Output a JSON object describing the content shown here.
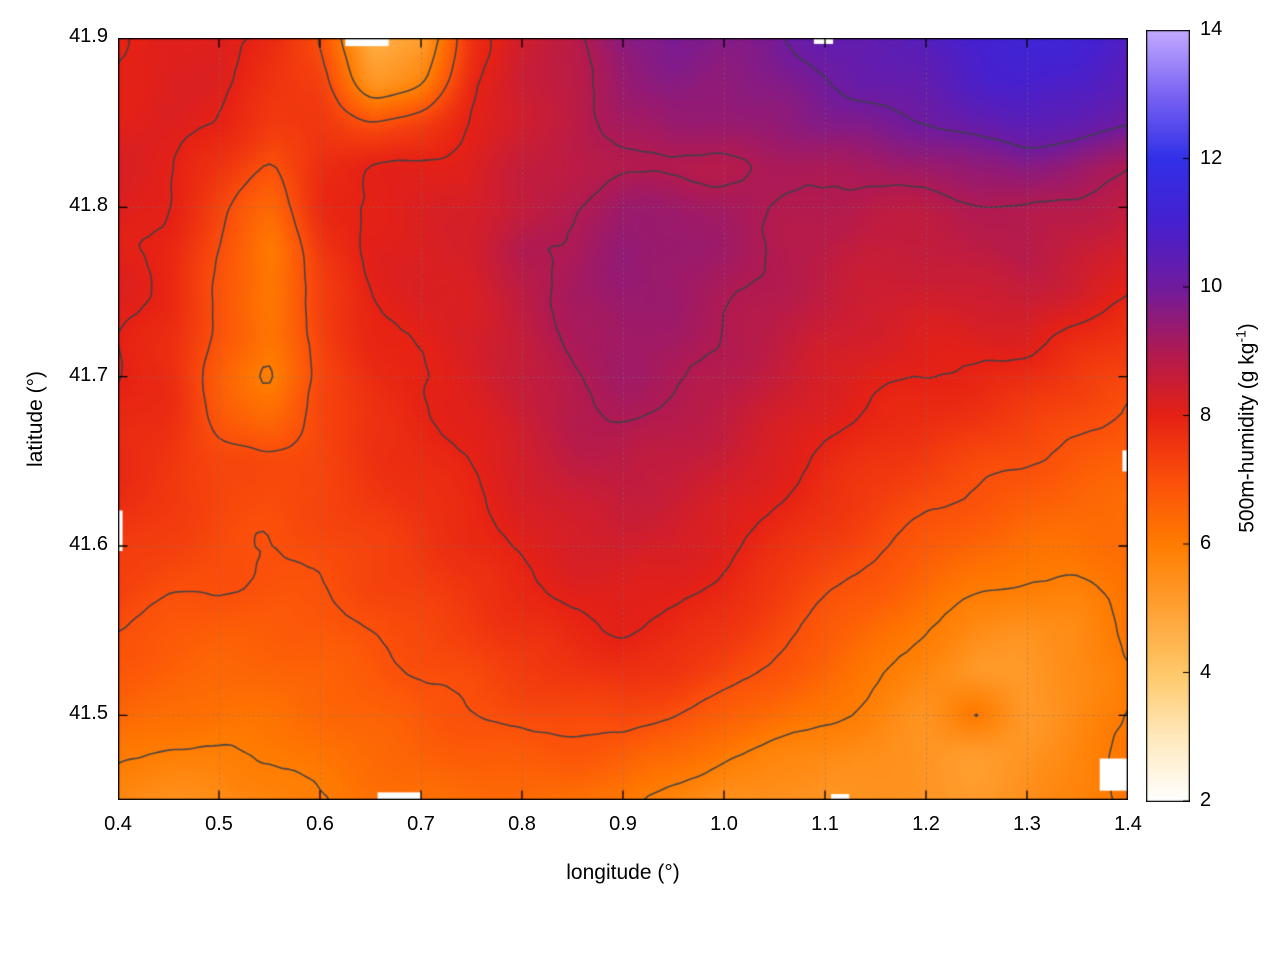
{
  "chart_data": {
    "type": "heatmap",
    "title": "",
    "xlabel": "longitude (°)",
    "ylabel": "latitude (°)",
    "colorbar_label": {
      "prefix": "500m-humidity (g kg",
      "sup": "-1",
      "suffix": ")"
    },
    "xlim": [
      0.4,
      1.4
    ],
    "ylim": [
      41.45,
      41.9
    ],
    "clim": [
      2,
      14
    ],
    "grid_on": true,
    "legend": "colorbar-right",
    "xticks": [
      {
        "v": 0.4,
        "label": "0.4"
      },
      {
        "v": 0.5,
        "label": "0.5"
      },
      {
        "v": 0.6,
        "label": "0.6"
      },
      {
        "v": 0.7,
        "label": "0.7"
      },
      {
        "v": 0.8,
        "label": "0.8"
      },
      {
        "v": 0.9,
        "label": "0.9"
      },
      {
        "v": 1.0,
        "label": "1.0"
      },
      {
        "v": 1.1,
        "label": "1.1"
      },
      {
        "v": 1.2,
        "label": "1.2"
      },
      {
        "v": 1.3,
        "label": "1.3"
      },
      {
        "v": 1.4,
        "label": "1.4"
      }
    ],
    "yticks": [
      {
        "v": 41.5,
        "label": "41.5"
      },
      {
        "v": 41.6,
        "label": "41.6"
      },
      {
        "v": 41.7,
        "label": "41.7"
      },
      {
        "v": 41.8,
        "label": "41.8"
      },
      {
        "v": 41.9,
        "label": "41.9"
      }
    ],
    "cbticks": [
      {
        "v": 2,
        "label": "2"
      },
      {
        "v": 4,
        "label": "4"
      },
      {
        "v": 6,
        "label": "6"
      },
      {
        "v": 8,
        "label": "8"
      },
      {
        "v": 10,
        "label": "10"
      },
      {
        "v": 12,
        "label": "12"
      },
      {
        "v": 14,
        "label": "14"
      }
    ],
    "contour_levels": [
      6,
      7,
      8,
      9,
      10
    ],
    "contour_color": "#3a4048",
    "grid_line_color": "#777777",
    "palette": [
      {
        "v": 2,
        "color": "#ffffff"
      },
      {
        "v": 3,
        "color": "#ffe9bd"
      },
      {
        "v": 4,
        "color": "#ffc869"
      },
      {
        "v": 5,
        "color": "#ffa133"
      },
      {
        "v": 6,
        "color": "#ff7c00"
      },
      {
        "v": 7,
        "color": "#fb4f0a"
      },
      {
        "v": 8,
        "color": "#e62114"
      },
      {
        "v": 9,
        "color": "#b01a52"
      },
      {
        "v": 10,
        "color": "#701b9e"
      },
      {
        "v": 11,
        "color": "#4620cf"
      },
      {
        "v": 12,
        "color": "#3130e8"
      },
      {
        "v": 13,
        "color": "#7a63f2"
      },
      {
        "v": 14,
        "color": "#c3aaff"
      }
    ],
    "grid": {
      "lon_min": 0.4,
      "lon_max": 1.4,
      "lat_max": 41.9,
      "lat_min": 41.45,
      "cols": 21,
      "rows": 19,
      "order": "rows top (41.9) to bottom (41.45)",
      "values": [
        [
          7.9,
          8.1,
          8.2,
          7.8,
          7.0,
          4.6,
          5.0,
          7.8,
          8.4,
          8.8,
          9.6,
          9.8,
          9.7,
          9.9,
          10.3,
          10.4,
          10.6,
          11.0,
          11.3,
          11.2,
          10.8
        ],
        [
          8.05,
          8.2,
          8.1,
          7.7,
          7.3,
          5.2,
          5.8,
          7.9,
          8.5,
          8.8,
          9.4,
          9.6,
          9.5,
          9.7,
          10.0,
          10.2,
          10.4,
          10.8,
          11.0,
          10.9,
          10.5
        ],
        [
          8.1,
          8.2,
          8.0,
          7.4,
          7.6,
          7.0,
          7.4,
          8.0,
          8.5,
          8.7,
          9.2,
          9.4,
          9.3,
          9.5,
          9.7,
          9.8,
          10.0,
          10.3,
          10.5,
          10.4,
          10.0
        ],
        [
          8.2,
          8.1,
          7.6,
          6.9,
          7.8,
          8.0,
          8.1,
          8.2,
          8.6,
          8.8,
          8.9,
          8.9,
          8.9,
          9.0,
          9.1,
          9.2,
          9.3,
          9.5,
          9.6,
          9.4,
          9.1
        ],
        [
          8.2,
          8.0,
          7.2,
          6.4,
          7.8,
          8.1,
          8.2,
          8.3,
          8.6,
          9.0,
          9.3,
          9.3,
          9.2,
          9.0,
          8.9,
          8.8,
          8.8,
          8.9,
          9.0,
          8.9,
          8.7
        ],
        [
          8.1,
          7.9,
          7.0,
          5.9,
          7.6,
          8.1,
          8.2,
          8.3,
          9.1,
          8.95,
          9.5,
          9.4,
          9.2,
          9.0,
          8.8,
          8.6,
          8.6,
          8.8,
          8.9,
          8.6,
          8.3
        ],
        [
          8.1,
          7.9,
          6.9,
          6.0,
          7.4,
          8.0,
          8.2,
          8.3,
          8.7,
          9.2,
          9.4,
          9.3,
          9.1,
          8.9,
          8.7,
          8.5,
          8.4,
          8.5,
          8.6,
          8.4,
          8.1
        ],
        [
          8.0,
          7.8,
          6.8,
          6.2,
          7.3,
          7.9,
          8.1,
          8.3,
          8.6,
          9.1,
          9.3,
          9.2,
          9.0,
          8.8,
          8.5,
          8.3,
          8.2,
          8.2,
          8.2,
          7.9,
          7.6
        ],
        [
          8.0,
          7.8,
          6.6,
          5.8,
          7.2,
          7.8,
          8.0,
          8.2,
          8.6,
          9.0,
          9.2,
          9.1,
          8.9,
          8.6,
          8.3,
          8.1,
          8.0,
          7.9,
          7.8,
          7.5,
          7.2
        ],
        [
          7.9,
          7.7,
          6.8,
          6.4,
          7.2,
          7.7,
          7.9,
          8.1,
          8.5,
          8.9,
          9.05,
          8.9,
          8.7,
          8.4,
          8.1,
          7.9,
          7.8,
          7.6,
          7.4,
          7.1,
          6.9
        ],
        [
          7.8,
          7.6,
          7.2,
          7.1,
          7.3,
          7.6,
          7.8,
          8.0,
          8.4,
          8.7,
          8.8,
          8.7,
          8.5,
          8.2,
          7.9,
          7.6,
          7.4,
          7.2,
          7.0,
          6.8,
          6.6
        ],
        [
          7.7,
          7.5,
          7.2,
          7.1,
          7.2,
          7.5,
          7.7,
          7.9,
          8.2,
          8.5,
          8.6,
          8.5,
          8.3,
          8.0,
          7.7,
          7.4,
          7.1,
          6.9,
          6.7,
          6.5,
          6.4
        ],
        [
          7.5,
          7.3,
          7.1,
          7.0,
          7.1,
          7.3,
          7.5,
          7.8,
          8.1,
          8.3,
          8.4,
          8.3,
          8.1,
          7.8,
          7.4,
          7.1,
          6.8,
          6.5,
          6.3,
          6.2,
          6.3
        ],
        [
          7.3,
          7.1,
          7.0,
          6.9,
          7.0,
          7.2,
          7.4,
          7.6,
          7.9,
          8.1,
          8.2,
          8.1,
          7.9,
          7.5,
          7.1,
          6.8,
          6.4,
          6.1,
          5.9,
          5.9,
          6.2
        ],
        [
          7.0,
          6.8,
          6.7,
          6.7,
          6.8,
          7.0,
          7.2,
          7.4,
          7.7,
          7.9,
          8.0,
          7.9,
          7.6,
          7.2,
          6.8,
          6.4,
          6.0,
          5.6,
          5.4,
          5.6,
          6.1
        ],
        [
          6.8,
          6.6,
          6.5,
          6.5,
          6.6,
          6.8,
          7.0,
          7.2,
          7.4,
          7.6,
          7.7,
          7.6,
          7.3,
          6.9,
          6.5,
          6.1,
          5.7,
          5.2,
          5.2,
          5.5,
          6.0
        ],
        [
          6.5,
          6.3,
          6.2,
          6.3,
          6.4,
          6.6,
          6.8,
          7.0,
          7.1,
          7.2,
          7.2,
          7.0,
          6.7,
          6.4,
          6.1,
          5.8,
          5.4,
          6.1,
          5.2,
          5.6,
          6.0
        ],
        [
          6.1,
          5.9,
          5.9,
          6.0,
          6.2,
          6.4,
          6.6,
          6.7,
          6.8,
          6.8,
          6.7,
          6.4,
          6.0,
          5.8,
          5.6,
          5.5,
          5.3,
          5.1,
          5.3,
          5.7,
          6.1
        ],
        [
          5.6,
          5.5,
          5.6,
          5.8,
          6.0,
          6.2,
          6.3,
          6.4,
          6.4,
          6.3,
          6.1,
          5.8,
          5.5,
          5.4,
          5.4,
          5.4,
          5.3,
          5.2,
          5.4,
          5.8,
          6.2
        ]
      ]
    },
    "gaps": [
      {
        "lon": [
          0.625,
          0.668
        ],
        "lat": [
          41.8952,
          41.9
        ]
      },
      {
        "lon": [
          1.089,
          1.108
        ],
        "lat": [
          41.8965,
          41.9
        ]
      },
      {
        "lon": [
          0.657,
          0.7
        ],
        "lat": [
          41.45,
          41.4545
        ]
      },
      {
        "lon": [
          1.106,
          1.124
        ],
        "lat": [
          41.45,
          41.4535
        ]
      },
      {
        "lon": [
          0.4,
          0.4045
        ],
        "lat": [
          41.597,
          41.621
        ]
      },
      {
        "lon": [
          1.372,
          1.4
        ],
        "lat": [
          41.4555,
          41.4745
        ]
      },
      {
        "lon": [
          1.3945,
          1.4
        ],
        "lat": [
          41.644,
          41.6565
        ]
      }
    ]
  }
}
